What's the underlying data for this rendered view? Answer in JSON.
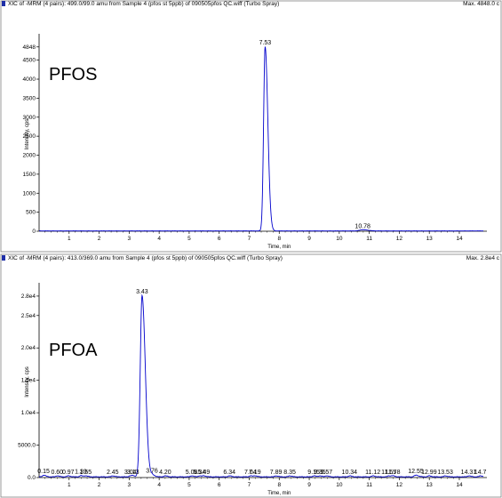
{
  "chart_data": [
    {
      "type": "line",
      "header": "XIC of -MRM (4 pairs): 499.0/99.0 amu from Sample 4 (pfos st 5ppb) of 090505pfos QC.wiff (Turbo Spray)",
      "max_label": "Max. 4848.0 c",
      "compound": "PFOS",
      "xlabel": "Time, min",
      "ylabel": "Intensity, cps",
      "xlim": [
        0,
        14.8
      ],
      "ylim": [
        0,
        5100
      ],
      "x_ticks": [
        1,
        2,
        3,
        4,
        5,
        6,
        7,
        8,
        9,
        10,
        11,
        12,
        13,
        14
      ],
      "x_tick_labels": [
        "1",
        "2",
        "3",
        "4",
        "5",
        "6",
        "7",
        "8",
        "9",
        "10",
        "11",
        "12",
        "13",
        "14"
      ],
      "y_ticks": [
        0,
        500,
        1000,
        1500,
        2000,
        2500,
        3000,
        3500,
        4000,
        4500,
        4848
      ],
      "y_tick_labels": [
        "0",
        "500",
        "1000",
        "1500",
        "2000",
        "2500",
        "3000",
        "3500",
        "4000",
        "4500",
        "4848"
      ],
      "peaks": [
        {
          "rt": 7.53,
          "height": 4848,
          "width": 0.05,
          "label": "7.53"
        },
        {
          "rt": 10.78,
          "height": 30,
          "width": 0.1,
          "label": "10.78"
        }
      ],
      "baseline": 10,
      "color": "#0000cc"
    },
    {
      "type": "line",
      "header": "XIC of -MRM (4 pairs): 413.0/369.0 amu from Sample 4 (pfos st 5ppb) of 090505pfos QC.wiff (Turbo Spray)",
      "max_label": "Max. 2.8e4 c",
      "compound": "PFOA",
      "xlabel": "Time, min",
      "ylabel": "Intensity, cps",
      "xlim": [
        0,
        14.8
      ],
      "ylim": [
        0,
        29500
      ],
      "x_ticks": [
        1,
        2,
        3,
        4,
        5,
        6,
        7,
        8,
        9,
        10,
        11,
        12,
        13,
        14
      ],
      "x_tick_labels": [
        "1",
        "2",
        "3",
        "4",
        "5",
        "6",
        "7",
        "8",
        "9",
        "10",
        "11",
        "12",
        "13",
        "14"
      ],
      "y_ticks": [
        0,
        5000,
        10000,
        15000,
        20000,
        25000,
        28000
      ],
      "y_tick_labels": [
        "0.0",
        "5000.0",
        "1.0e4",
        "1.5e4",
        "2.0e4",
        "2.5e4",
        "2.8e4"
      ],
      "peaks": [
        {
          "rt": 3.43,
          "height": 28000,
          "width": 0.06,
          "label": "3.43"
        },
        {
          "rt": 0.15,
          "height": 250,
          "width": 0.04,
          "label": "0.15"
        },
        {
          "rt": 0.6,
          "height": 150,
          "width": 0.04,
          "label": "0.60"
        },
        {
          "rt": 0.97,
          "height": 150,
          "width": 0.04,
          "label": "0.97"
        },
        {
          "rt": 1.39,
          "height": 180,
          "width": 0.04,
          "label": "1.39"
        },
        {
          "rt": 1.55,
          "height": 150,
          "width": 0.04,
          "label": "1.55"
        },
        {
          "rt": 2.45,
          "height": 150,
          "width": 0.04,
          "label": "2.45"
        },
        {
          "rt": 3.04,
          "height": 150,
          "width": 0.04,
          "label": "3.04"
        },
        {
          "rt": 3.13,
          "height": 150,
          "width": 0.04,
          "label": "3.13"
        },
        {
          "rt": 3.76,
          "height": 300,
          "width": 0.05,
          "label": "3.76"
        },
        {
          "rt": 4.2,
          "height": 150,
          "width": 0.04,
          "label": "4.20"
        },
        {
          "rt": 5.08,
          "height": 150,
          "width": 0.04,
          "label": "5.08"
        },
        {
          "rt": 5.34,
          "height": 150,
          "width": 0.04,
          "label": "5.34"
        },
        {
          "rt": 5.49,
          "height": 150,
          "width": 0.04,
          "label": "5.49"
        },
        {
          "rt": 6.34,
          "height": 150,
          "width": 0.04,
          "label": "6.34"
        },
        {
          "rt": 7.04,
          "height": 150,
          "width": 0.04,
          "label": "7.04"
        },
        {
          "rt": 7.19,
          "height": 150,
          "width": 0.04,
          "label": "7.19"
        },
        {
          "rt": 7.89,
          "height": 150,
          "width": 0.04,
          "label": "7.89"
        },
        {
          "rt": 8.35,
          "height": 150,
          "width": 0.04,
          "label": "8.35"
        },
        {
          "rt": 9.15,
          "height": 150,
          "width": 0.04,
          "label": "9.15"
        },
        {
          "rt": 9.35,
          "height": 150,
          "width": 0.04,
          "label": "9.35"
        },
        {
          "rt": 9.57,
          "height": 150,
          "width": 0.04,
          "label": "9.57"
        },
        {
          "rt": 10.34,
          "height": 150,
          "width": 0.04,
          "label": "10.34"
        },
        {
          "rt": 11.12,
          "height": 150,
          "width": 0.04,
          "label": "11.12"
        },
        {
          "rt": 11.65,
          "height": 150,
          "width": 0.04,
          "label": "11.65"
        },
        {
          "rt": 11.78,
          "height": 150,
          "width": 0.04,
          "label": "11.78"
        },
        {
          "rt": 12.55,
          "height": 250,
          "width": 0.05,
          "label": "12.55"
        },
        {
          "rt": 12.99,
          "height": 150,
          "width": 0.04,
          "label": "12.99"
        },
        {
          "rt": 13.53,
          "height": 150,
          "width": 0.04,
          "label": "13.53"
        },
        {
          "rt": 14.31,
          "height": 150,
          "width": 0.04,
          "label": "14.31"
        },
        {
          "rt": 14.7,
          "height": 150,
          "width": 0.04,
          "label": "14.7"
        }
      ],
      "baseline": 150,
      "color": "#0000cc"
    }
  ]
}
